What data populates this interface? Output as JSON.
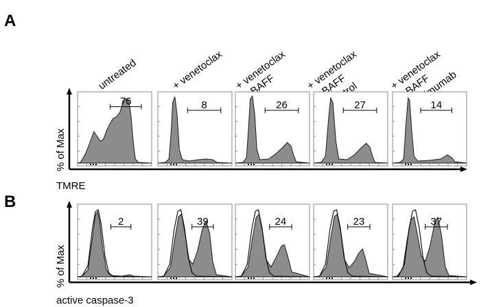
{
  "chart_data": [
    {
      "type": "histogram-overlay",
      "panel_label": "A",
      "xlabel": "TMRE",
      "ylabel": "% of Max",
      "conditions": [
        [
          "untreated"
        ],
        [
          "+ venetoclax"
        ],
        [
          "+ venetoclax",
          "+ BAFF"
        ],
        [
          "+ venetoclax",
          "+ BAFF",
          "+ control"
        ],
        [
          "+ venetoclax",
          "+ BAFF",
          "+ belimumab"
        ]
      ],
      "gate_values": [
        "76",
        "8",
        "26",
        "27",
        "14"
      ]
    },
    {
      "type": "histogram-overlay",
      "panel_label": "B",
      "xlabel": "active caspase-3",
      "ylabel": "% of Max",
      "gate_values": [
        "2",
        "39",
        "24",
        "23",
        "37"
      ]
    }
  ],
  "colors": {
    "histogram_fill": "#8c8c8c",
    "outline": "#1a1a1a",
    "control_outline": "#000000"
  }
}
